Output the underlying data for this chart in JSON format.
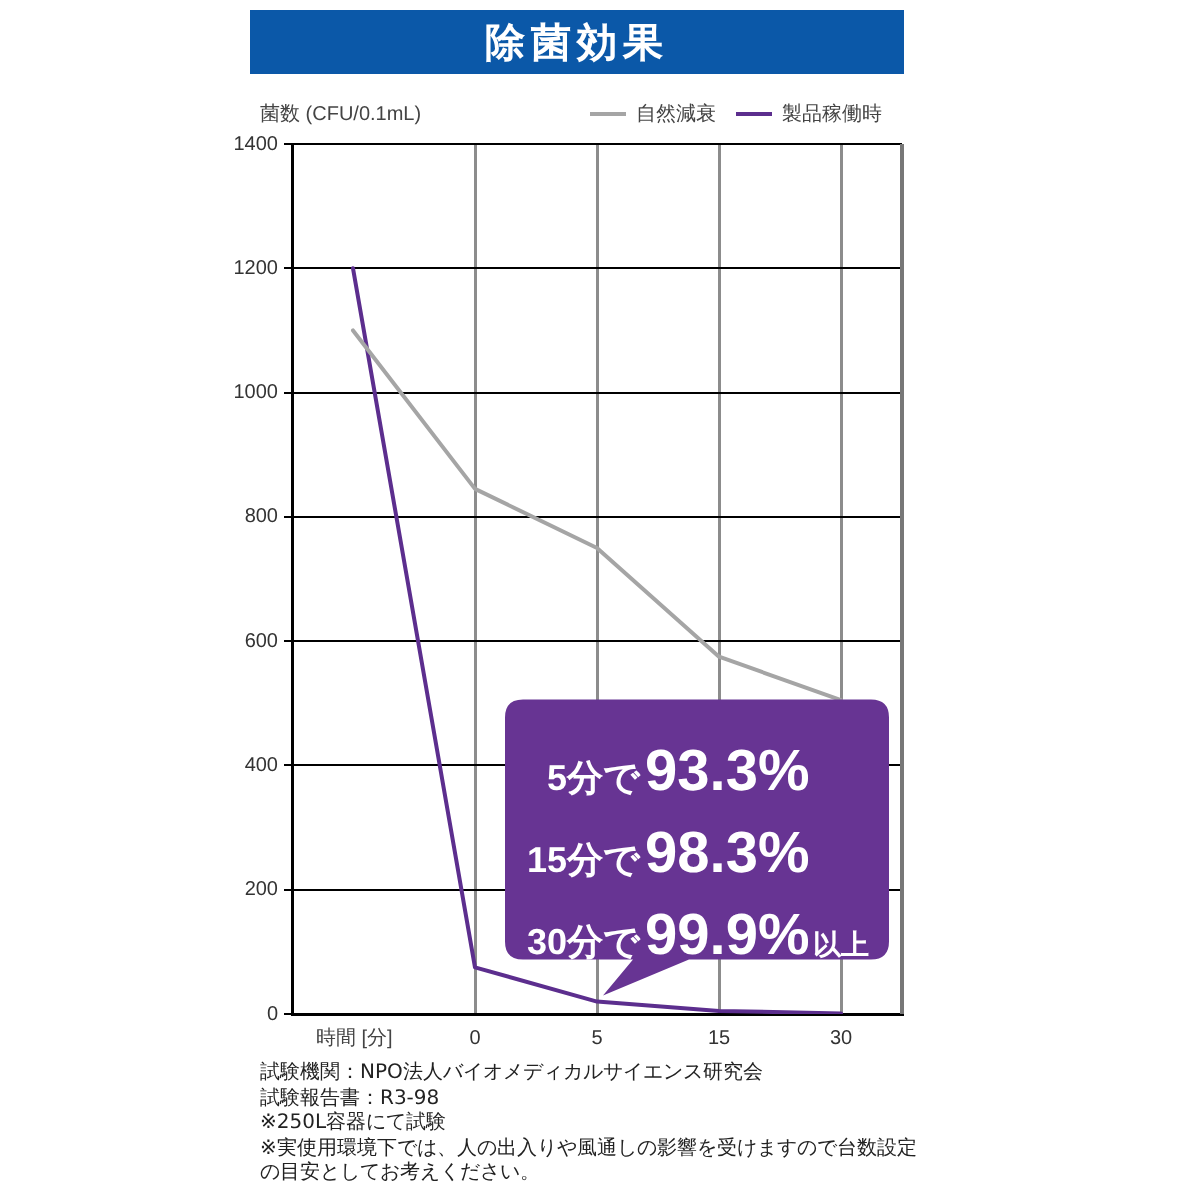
{
  "chart_data": {
    "type": "line",
    "title": "除菌効果",
    "ylabel": "菌数 (CFU/0.1mL)",
    "xlabel": "時間 [分]",
    "categories": [
      null,
      "0",
      "5",
      "15",
      "30"
    ],
    "series": [
      {
        "name": "自然減衰",
        "color": "#a5a5a5",
        "values": [
          1100,
          845,
          750,
          575,
          505
        ]
      },
      {
        "name": "製品稼働時",
        "color": "#5c2e8e",
        "values": [
          1200,
          75,
          20,
          5,
          1
        ]
      }
    ],
    "ylim": [
      0,
      1400
    ],
    "yticks": [
      0,
      200,
      400,
      600,
      800,
      1000,
      1200,
      1400
    ],
    "grid": true,
    "legend": "top right",
    "marker": "none",
    "line_style": "solid",
    "annotations": [
      {
        "text": "5分で93.3%\n15分で98.3%\n30分で99.9%以上",
        "x": "5",
        "y": 20
      },
      "試験機関：NPO法人バイオメディカルサイエンス研究会",
      "試験報告書：R3-98",
      "※250L容器にて試験",
      "※実使用環境下では、人の出入りや風通しの影響を受けますので台数設定の目安としてお考えください。"
    ]
  }
}
